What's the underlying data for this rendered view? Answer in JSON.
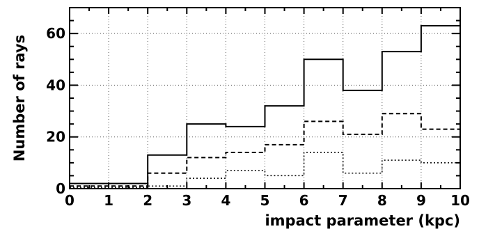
{
  "chart_data": {
    "type": "histogram",
    "xlabel": "impact parameter (kpc)",
    "ylabel": "Number of rays",
    "xlim": [
      0,
      10
    ],
    "ylim": [
      0,
      70
    ],
    "x_ticks": [
      0,
      1,
      2,
      3,
      4,
      5,
      6,
      7,
      8,
      9,
      10
    ],
    "y_ticks": [
      0,
      20,
      40,
      60
    ],
    "grid": true,
    "bin_edges": [
      0,
      1,
      2,
      3,
      4,
      5,
      6,
      7,
      8,
      9,
      10
    ],
    "series": [
      {
        "line_style": "solid",
        "values": [
          2,
          2,
          13,
          25,
          24,
          32,
          50,
          38,
          53,
          63
        ]
      },
      {
        "line_style": "dashed",
        "values": [
          1,
          1,
          6,
          12,
          14,
          17,
          26,
          21,
          29,
          23
        ]
      },
      {
        "line_style": "dotted",
        "values": [
          0.5,
          0.5,
          1,
          4,
          7,
          5,
          14,
          6,
          11,
          10
        ]
      }
    ]
  }
}
